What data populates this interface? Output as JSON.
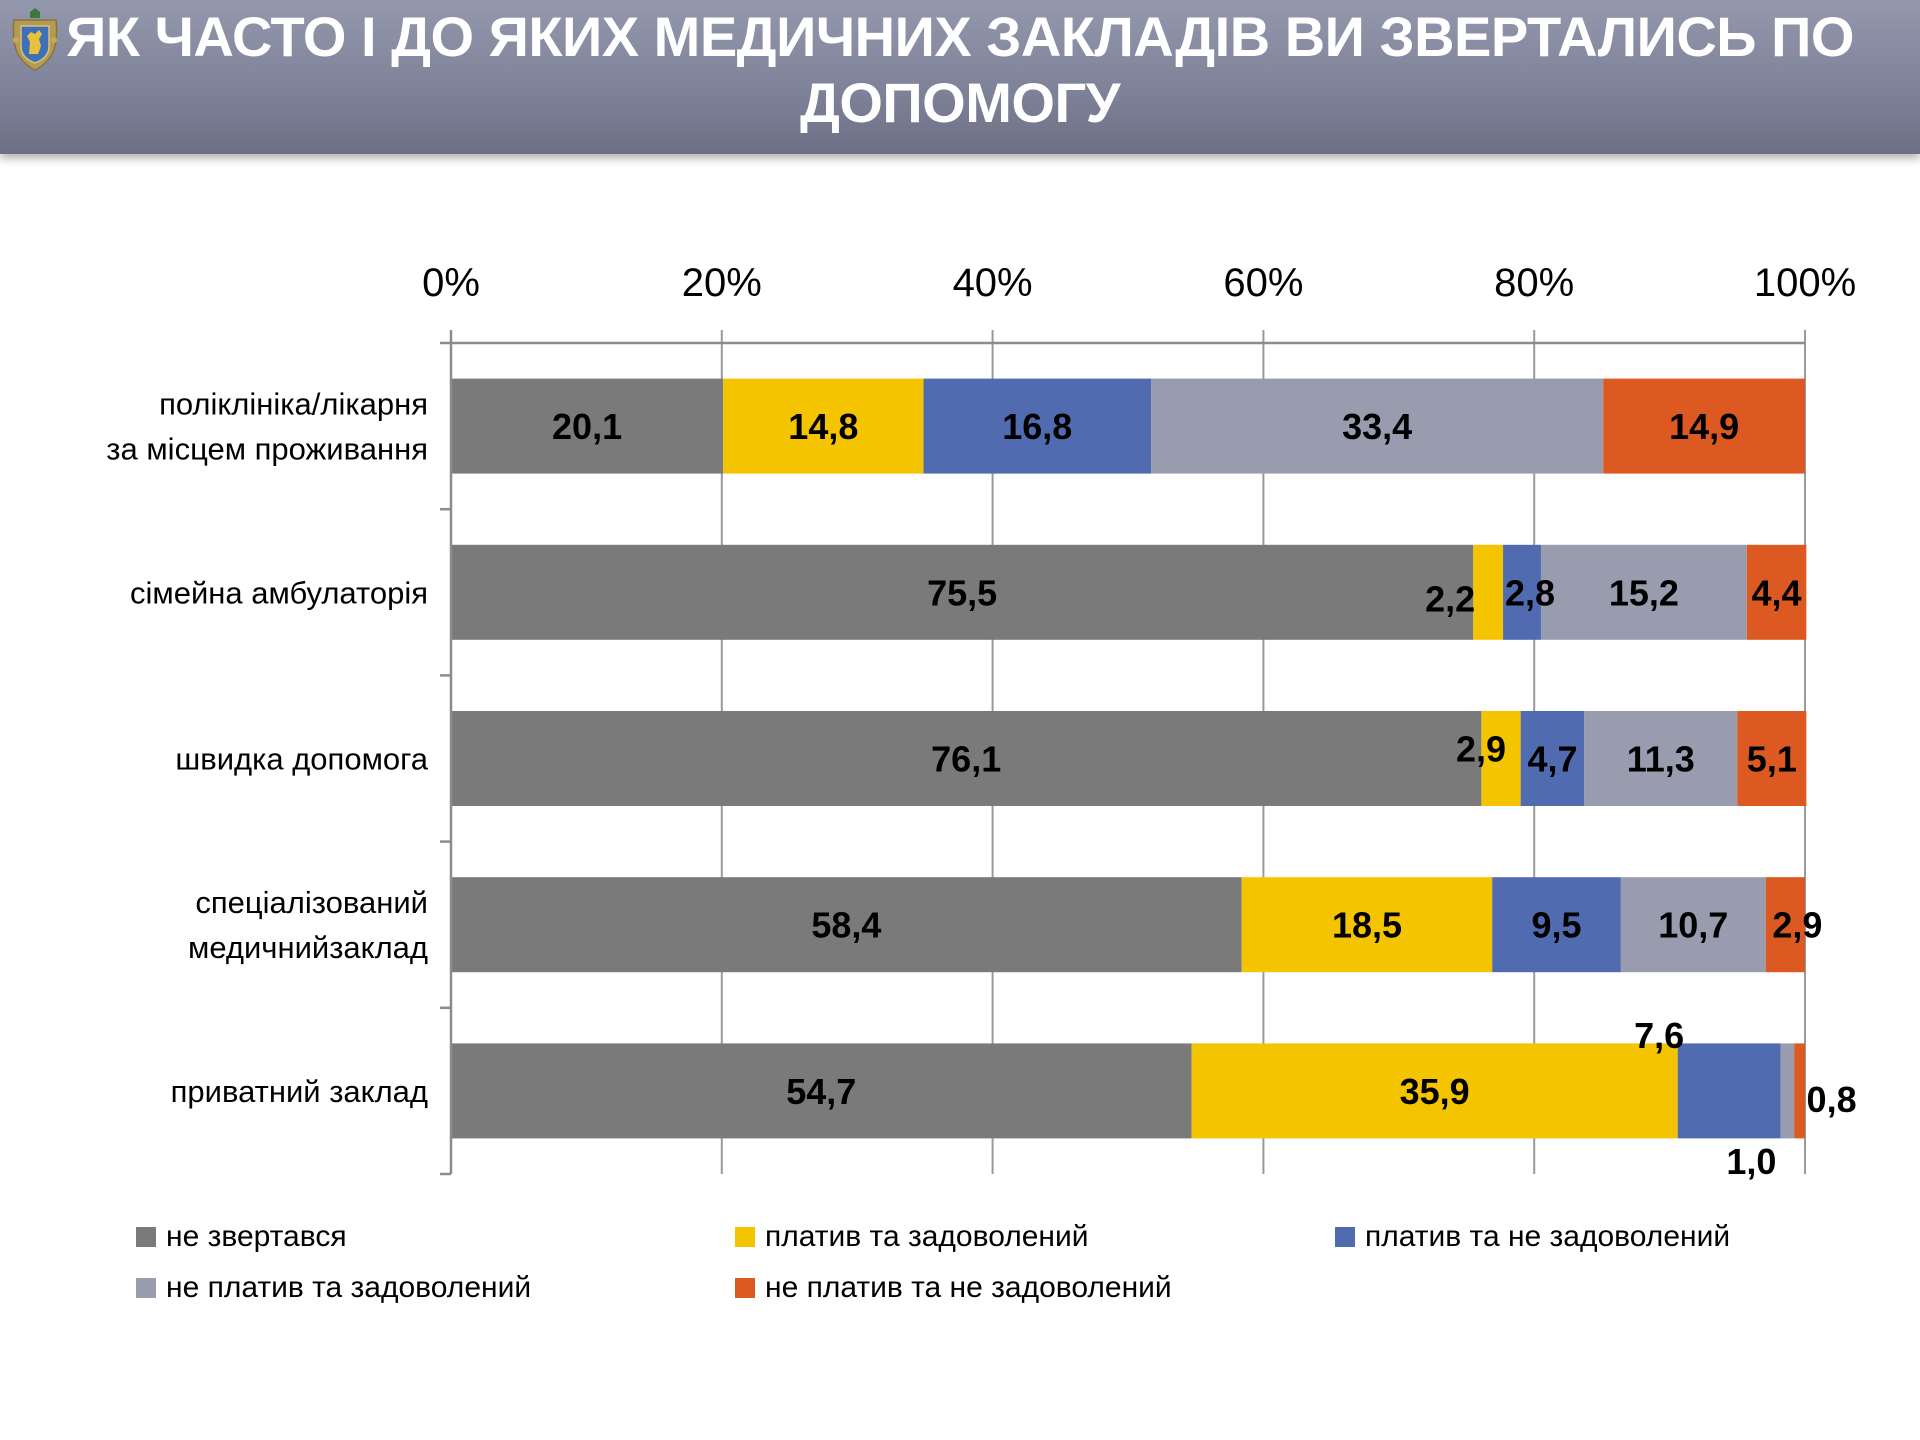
{
  "header": {
    "title_lines": [
      "ЯК ЧАСТО І ДО ЯКИХ МЕДИЧНИХ ЗАКЛАДІВ ВИ ЗВЕРТАЛИСЬ ПО",
      "ДОПОМОГУ"
    ],
    "logo": "coat-of-arms-lviv-oblast"
  },
  "chart_data": {
    "type": "bar",
    "orientation": "horizontal",
    "stacked": "percent",
    "title": "ЯК ЧАСТО І ДО ЯКИХ МЕДИЧНИХ ЗАКЛАДІВ ВИ ЗВЕРТАЛИСЬ ПО ДОПОМОГУ",
    "xlabel": "",
    "ylabel": "",
    "xlim": [
      0,
      100
    ],
    "x_ticks": [
      "0%",
      "20%",
      "40%",
      "60%",
      "80%",
      "100%"
    ],
    "x_tick_values": [
      0,
      20,
      40,
      60,
      80,
      100
    ],
    "x_axis_position": "top",
    "grid": true,
    "legend_position": "bottom",
    "categories": [
      [
        "поліклініка/лікарня",
        "за місцем проживання"
      ],
      [
        "сімейна амбулаторія"
      ],
      [
        "швидка допомога"
      ],
      [
        "спеціалізований",
        "медичнийзаклад"
      ],
      [
        "приватний заклад"
      ]
    ],
    "series": [
      {
        "name": "не звертався",
        "color": "#7a7a7a",
        "values": [
          20.1,
          75.5,
          76.1,
          58.4,
          54.7
        ],
        "labels": [
          "20,1",
          "75,5",
          "76,1",
          "58,4",
          "54,7"
        ]
      },
      {
        "name": "платив та задоволений",
        "color": "#f5c400",
        "values": [
          14.8,
          2.2,
          2.9,
          18.5,
          35.9
        ],
        "labels": [
          "14,8",
          "2,2",
          "2,9",
          "18,5",
          "35,9"
        ]
      },
      {
        "name": "платив та не задоволений",
        "color": "#506bb0",
        "values": [
          16.8,
          2.8,
          4.7,
          9.5,
          7.6
        ],
        "labels": [
          "16,8",
          "2,8",
          "4,7",
          "9,5",
          "7,6"
        ]
      },
      {
        "name": "не платив та задоволений",
        "color": "#999caf",
        "values": [
          33.4,
          15.2,
          11.3,
          10.7,
          1.0
        ],
        "labels": [
          "33,4",
          "15,2",
          "11,3",
          "10,7",
          "1,0"
        ]
      },
      {
        "name": "не платив та не задоволений",
        "color": "#dc5a22",
        "values": [
          14.9,
          4.4,
          5.1,
          2.9,
          0.8
        ],
        "labels": [
          "14,9",
          "4,4",
          "5,1",
          "2,9",
          "0,8"
        ]
      }
    ]
  }
}
